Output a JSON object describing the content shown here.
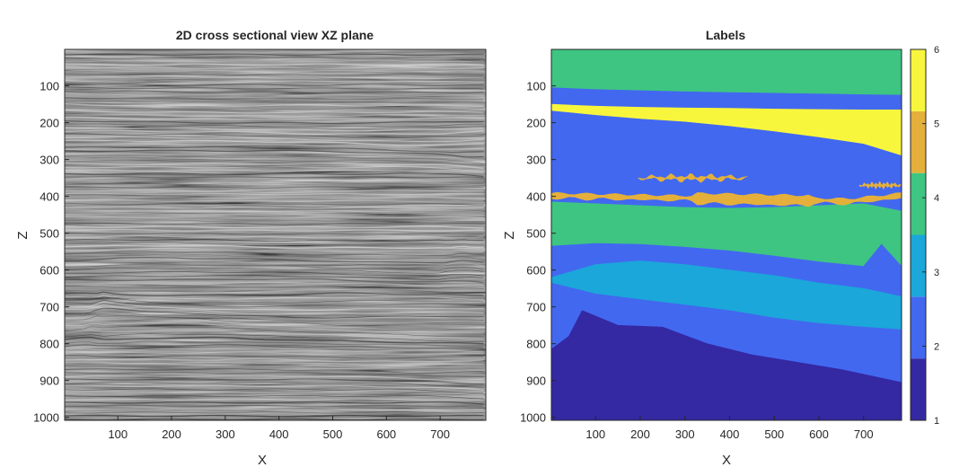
{
  "figure": {
    "left_panel": {
      "title": "2D cross sectional view XZ plane",
      "xlabel": "X",
      "ylabel": "Z"
    },
    "right_panel": {
      "title": "Labels",
      "xlabel": "X",
      "ylabel": "Z"
    }
  },
  "colors": {
    "seismic_gray": "#7f7f7f",
    "label_1": "#3528A3",
    "label_2": "#4268F0",
    "label_3": "#1BA7D9",
    "label_4": "#3EC582",
    "label_5": "#E4B03B",
    "label_6": "#F8F63C"
  },
  "chart_data": [
    {
      "type": "heatmap",
      "title": "2D cross sectional view XZ plane",
      "xlabel": "X",
      "ylabel": "Z",
      "colormap": "gray",
      "xlim": [
        1,
        785
      ],
      "ylim": [
        1,
        1008
      ],
      "y_reversed": true,
      "x_ticks": [
        100,
        200,
        300,
        400,
        500,
        600,
        700
      ],
      "y_ticks": [
        100,
        200,
        300,
        400,
        500,
        600,
        700,
        800,
        900,
        1000
      ]
    },
    {
      "type": "heatmap",
      "title": "Labels",
      "xlabel": "X",
      "ylabel": "Z",
      "colormap": "parula-6",
      "xlim": [
        1,
        785
      ],
      "ylim": [
        1,
        1008
      ],
      "y_reversed": true,
      "x_ticks": [
        100,
        200,
        300,
        400,
        500,
        600,
        700
      ],
      "y_ticks": [
        100,
        200,
        300,
        400,
        500,
        600,
        700,
        800,
        900,
        1000
      ],
      "colorbar": {
        "range": [
          1,
          6
        ],
        "ticks": [
          1,
          2,
          3,
          4,
          5,
          6
        ],
        "classes": [
          1,
          2,
          3,
          4,
          5,
          6
        ]
      },
      "boundaries": [
        {
          "name": "top of label 2 (below top label 4 zone)",
          "x": [
            1,
            100,
            200,
            300,
            400,
            500,
            600,
            700,
            785
          ],
          "z": [
            105,
            110,
            113,
            116,
            118,
            120,
            122,
            124,
            125
          ]
        },
        {
          "name": "top of label 6",
          "x": [
            1,
            100,
            200,
            300,
            400,
            500,
            600,
            700,
            785
          ],
          "z": [
            150,
            155,
            158,
            160,
            161,
            163,
            164,
            165,
            165
          ]
        },
        {
          "name": "base of label 6",
          "x": [
            1,
            100,
            200,
            300,
            400,
            500,
            600,
            700,
            785
          ],
          "z": [
            168,
            180,
            190,
            198,
            210,
            224,
            240,
            258,
            290
          ]
        },
        {
          "name": "top of label 4 (middle)",
          "x": [
            1,
            100,
            200,
            300,
            400,
            500,
            600,
            700,
            785
          ],
          "z": [
            415,
            420,
            425,
            430,
            432,
            430,
            425,
            420,
            440
          ]
        },
        {
          "name": "top of label 2 (lower)",
          "x": [
            1,
            100,
            200,
            300,
            400,
            500,
            600,
            700,
            740,
            785
          ],
          "z": [
            535,
            528,
            530,
            538,
            548,
            562,
            578,
            590,
            530,
            590
          ]
        },
        {
          "name": "top of label 3",
          "x": [
            1,
            100,
            200,
            300,
            400,
            500,
            600,
            700,
            785
          ],
          "z": [
            620,
            585,
            575,
            585,
            600,
            615,
            635,
            650,
            672
          ]
        },
        {
          "name": "base of label 3",
          "x": [
            1,
            100,
            200,
            300,
            400,
            500,
            600,
            700,
            785
          ],
          "z": [
            635,
            665,
            680,
            695,
            710,
            730,
            745,
            755,
            762
          ]
        },
        {
          "name": "top of label 1",
          "x": [
            1,
            40,
            70,
            150,
            250,
            350,
            450,
            550,
            650,
            785
          ],
          "z": [
            815,
            780,
            710,
            750,
            755,
            800,
            830,
            850,
            870,
            905
          ]
        }
      ],
      "lenses_label_5": [
        {
          "x_range": [
            195,
            440
          ],
          "z_center": 350
        },
        {
          "x_range": [
            1,
            785
          ],
          "z_center": 405
        },
        {
          "x_range": [
            690,
            785
          ],
          "z_center": 370
        }
      ]
    }
  ]
}
